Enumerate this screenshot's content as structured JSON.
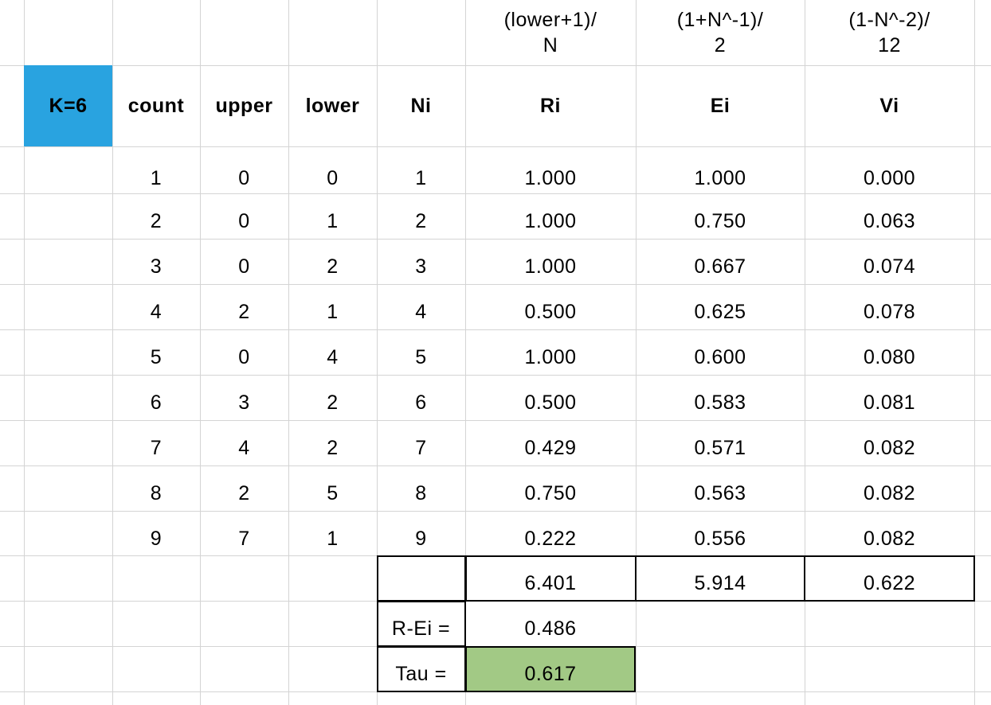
{
  "colors": {
    "gridline": "#d4d4d4",
    "k_cell_fill": "#29a3e0",
    "tau_fill": "#a2c985",
    "border": "#000000"
  },
  "formulas": {
    "ri": [
      "(lower+1)/",
      "N"
    ],
    "ei": [
      "(1+N^-1)/",
      "2"
    ],
    "vi": [
      "(1-N^-2)/",
      "12"
    ]
  },
  "headers": {
    "k": "K=6",
    "count": "count",
    "upper": "upper",
    "lower": "lower",
    "ni": "Ni",
    "ri": "Ri",
    "ei": "Ei",
    "vi": "Vi"
  },
  "rows": [
    [
      "1",
      "0",
      "0",
      "1",
      "1.000",
      "1.000",
      "0.000"
    ],
    [
      "2",
      "0",
      "1",
      "2",
      "1.000",
      "0.750",
      "0.063"
    ],
    [
      "3",
      "0",
      "2",
      "3",
      "1.000",
      "0.667",
      "0.074"
    ],
    [
      "4",
      "2",
      "1",
      "4",
      "0.500",
      "0.625",
      "0.078"
    ],
    [
      "5",
      "0",
      "4",
      "5",
      "1.000",
      "0.600",
      "0.080"
    ],
    [
      "6",
      "3",
      "2",
      "6",
      "0.500",
      "0.583",
      "0.081"
    ],
    [
      "7",
      "4",
      "2",
      "7",
      "0.429",
      "0.571",
      "0.082"
    ],
    [
      "8",
      "2",
      "5",
      "8",
      "0.750",
      "0.563",
      "0.082"
    ],
    [
      "9",
      "7",
      "1",
      "9",
      "0.222",
      "0.556",
      "0.082"
    ]
  ],
  "totals": {
    "ri": "6.401",
    "ei": "5.914",
    "vi": "0.622"
  },
  "summary": {
    "r_ei_label": "R-Ei =",
    "r_ei_value": "0.486",
    "tau_label": "Tau =",
    "tau_value": "0.617"
  }
}
